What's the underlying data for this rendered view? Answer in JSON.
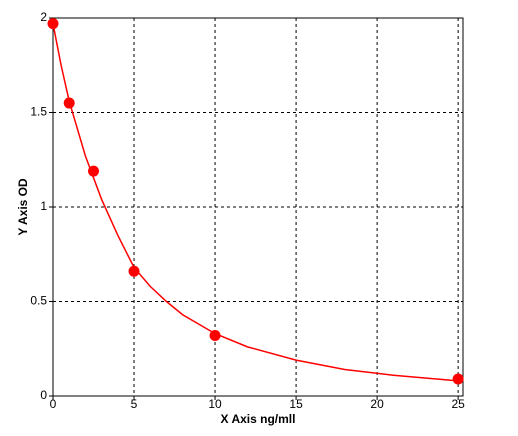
{
  "chart_data": {
    "type": "scatter",
    "x_label": "X Axis ng/mll",
    "y_label": "Y Axis OD",
    "xlim": [
      0,
      25.3
    ],
    "ylim": [
      0,
      2
    ],
    "xticks": [
      0,
      5,
      10,
      15,
      20,
      25
    ],
    "yticks": [
      0,
      0.5,
      1,
      1.5,
      2
    ],
    "grid": true,
    "series": [
      {
        "type": "line",
        "color": "#ff0000",
        "x": [
          0,
          0.5,
          1,
          2,
          3,
          4,
          5,
          6,
          7,
          8,
          10,
          12,
          15,
          18,
          21,
          25
        ],
        "values": [
          1.97,
          1.75,
          1.56,
          1.27,
          1.04,
          0.85,
          0.68,
          0.58,
          0.5,
          0.43,
          0.33,
          0.26,
          0.19,
          0.14,
          0.11,
          0.08
        ]
      },
      {
        "type": "scatter",
        "color": "#ff0000",
        "x": [
          0,
          1,
          2.5,
          5,
          10,
          25
        ],
        "values": [
          1.97,
          1.55,
          1.19,
          0.66,
          0.32,
          0.09
        ]
      }
    ]
  }
}
